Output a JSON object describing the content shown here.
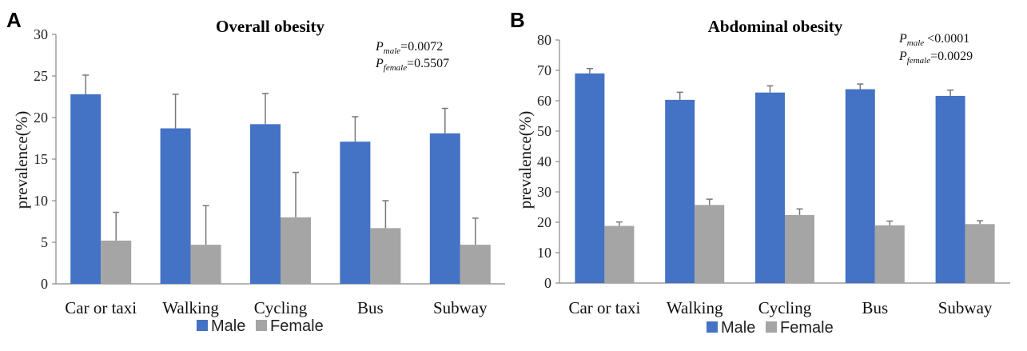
{
  "colors": {
    "male": "#4472C4",
    "female": "#A5A5A5"
  },
  "chart_data": [
    {
      "panel": "A",
      "type": "bar",
      "title": "Overall obesity",
      "ylabel": "prevalence(%)",
      "xlabel": "",
      "ylim": [
        0,
        30
      ],
      "yticks": [
        0,
        5,
        10,
        15,
        20,
        25,
        30
      ],
      "categories": [
        "Car or taxi",
        "Walking",
        "Cycling",
        "Bus",
        "Subway"
      ],
      "series": [
        {
          "name": "Male",
          "values": [
            22.8,
            18.7,
            19.2,
            17.1,
            18.1
          ],
          "error": [
            2.3,
            4.1,
            3.7,
            3.0,
            3.0
          ]
        },
        {
          "name": "Female",
          "values": [
            5.2,
            4.7,
            8.0,
            6.7,
            4.7
          ],
          "error": [
            3.4,
            4.7,
            5.4,
            3.3,
            3.2
          ]
        }
      ],
      "annotations": [
        {
          "p": "P",
          "sub": "male",
          "text": "=0.0072"
        },
        {
          "p": "P",
          "sub": "female",
          "text": "=0.5507"
        }
      ],
      "legend": [
        "Male",
        "Female"
      ],
      "legend_position": "bottom"
    },
    {
      "panel": "B",
      "type": "bar",
      "title": "Abdominal obesity",
      "ylabel": "prevalence(%)",
      "xlabel": "",
      "ylim": [
        0,
        80
      ],
      "yticks": [
        0,
        10,
        20,
        30,
        40,
        50,
        60,
        70,
        80
      ],
      "categories": [
        "Car or taxi",
        "Walking",
        "Cycling",
        "Bus",
        "Subway"
      ],
      "series": [
        {
          "name": "Male",
          "values": [
            69.0,
            60.3,
            62.7,
            63.8,
            61.6
          ],
          "error": [
            1.6,
            2.5,
            2.2,
            1.7,
            1.9
          ]
        },
        {
          "name": "Female",
          "values": [
            18.8,
            25.7,
            22.4,
            19.0,
            19.4
          ],
          "error": [
            1.3,
            1.9,
            2.0,
            1.4,
            1.1
          ]
        }
      ],
      "annotations": [
        {
          "p": "P",
          "sub": "male",
          "text": " <0.0001"
        },
        {
          "p": "P",
          "sub": "female",
          "text": "=0.0029"
        }
      ],
      "legend": [
        "Male",
        "Female"
      ],
      "legend_position": "bottom"
    }
  ]
}
